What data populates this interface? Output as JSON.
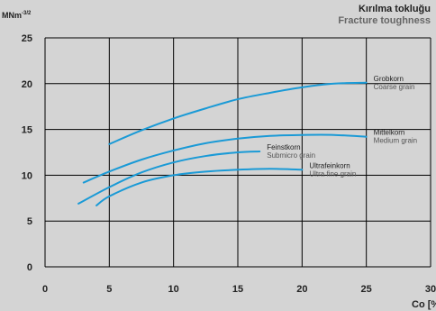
{
  "header": {
    "title": "Kırılma tokluğu",
    "subtitle": "Fracture toughness"
  },
  "colors": {
    "background": "#d4d4d4",
    "curve": "#1a9ad6",
    "grid": "#000000",
    "label": "#222222",
    "sublabel": "#555555"
  },
  "chart_data": {
    "type": "line",
    "title": "Kırılma tokluğu",
    "subtitle": "Fracture toughness",
    "ylabel": "MNm",
    "ylabel_sup": "-3/2",
    "xlabel": "Co [%",
    "xlim": [
      0,
      30
    ],
    "ylim": [
      0,
      25
    ],
    "x_ticks": [
      0,
      5,
      10,
      15,
      20,
      25,
      30
    ],
    "x_tick_labels": [
      "0",
      "5",
      "10",
      "15",
      "20",
      "25",
      "30"
    ],
    "y_ticks": [
      0,
      5,
      10,
      15,
      20,
      25
    ],
    "y_tick_labels": [
      "0",
      "5",
      "10",
      "15",
      "20",
      "25"
    ],
    "grid": true,
    "series": [
      {
        "name": "Grobkorn",
        "subname": "Coarse grain",
        "x": [
          5,
          7.5,
          10,
          12.5,
          15,
          17.5,
          20,
          22.5,
          25
        ],
        "y": [
          13.4,
          14.9,
          16.2,
          17.3,
          18.3,
          19.0,
          19.6,
          20.0,
          20.1
        ]
      },
      {
        "name": "Mittelkorn",
        "subname": "Medium grain",
        "x": [
          3,
          5,
          7.5,
          10,
          12.5,
          15,
          17.5,
          20,
          22.5,
          25
        ],
        "y": [
          9.2,
          10.4,
          11.7,
          12.7,
          13.5,
          14.0,
          14.3,
          14.4,
          14.4,
          14.2
        ]
      },
      {
        "name": "Feinstkorn",
        "subname": "Submicro grain",
        "x": [
          2.6,
          5,
          7.5,
          10,
          12.5,
          15,
          16.7
        ],
        "y": [
          6.9,
          8.7,
          10.3,
          11.4,
          12.1,
          12.5,
          12.6
        ]
      },
      {
        "name": "Ultrafeinkorn",
        "subname": "Ultra fine grain",
        "x": [
          4,
          5,
          7.5,
          10,
          12.5,
          15,
          17.5,
          20
        ],
        "y": [
          6.7,
          7.7,
          9.2,
          10.0,
          10.4,
          10.6,
          10.7,
          10.6
        ]
      }
    ]
  }
}
